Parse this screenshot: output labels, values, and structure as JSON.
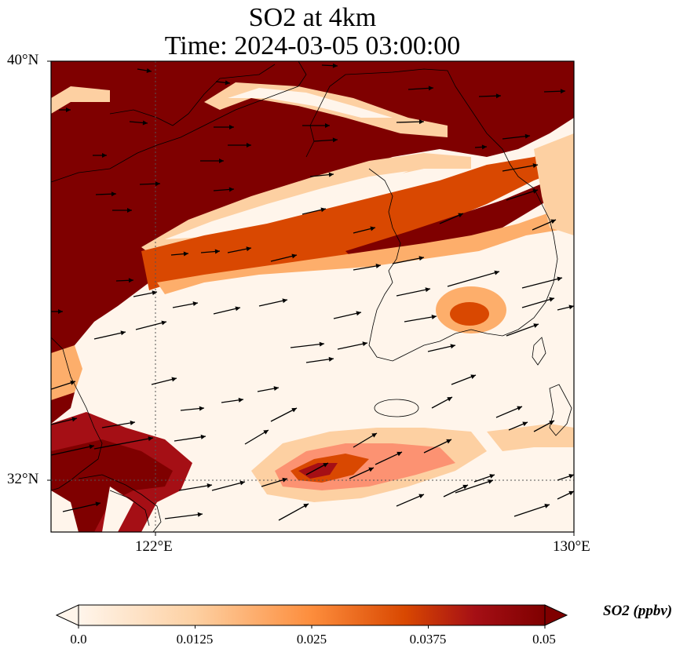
{
  "title_line1": "SO2 at 4km",
  "title_line2": "Time: 2024-03-05 03:00:00",
  "map": {
    "lat_labels": [
      "40°N",
      "32°N"
    ],
    "lon_labels": [
      "122°E",
      "130°E"
    ],
    "lon_range": [
      120,
      130
    ],
    "lat_range": [
      31,
      40
    ],
    "gridlines": "dotted at 122°E and 32°N",
    "field": "SO2 concentration",
    "wind_vectors": true
  },
  "colorbar": {
    "label": "SO2 (ppbv)",
    "ticks": [
      "0.0",
      "0.0125",
      "0.025",
      "0.0375",
      "0.05"
    ],
    "min": 0.0,
    "max": 0.05,
    "colormap": [
      "#fff5eb",
      "#fdd0a2",
      "#fd8d3c",
      "#d94801",
      "#a50f15",
      "#7f0000"
    ],
    "extend": "both"
  }
}
